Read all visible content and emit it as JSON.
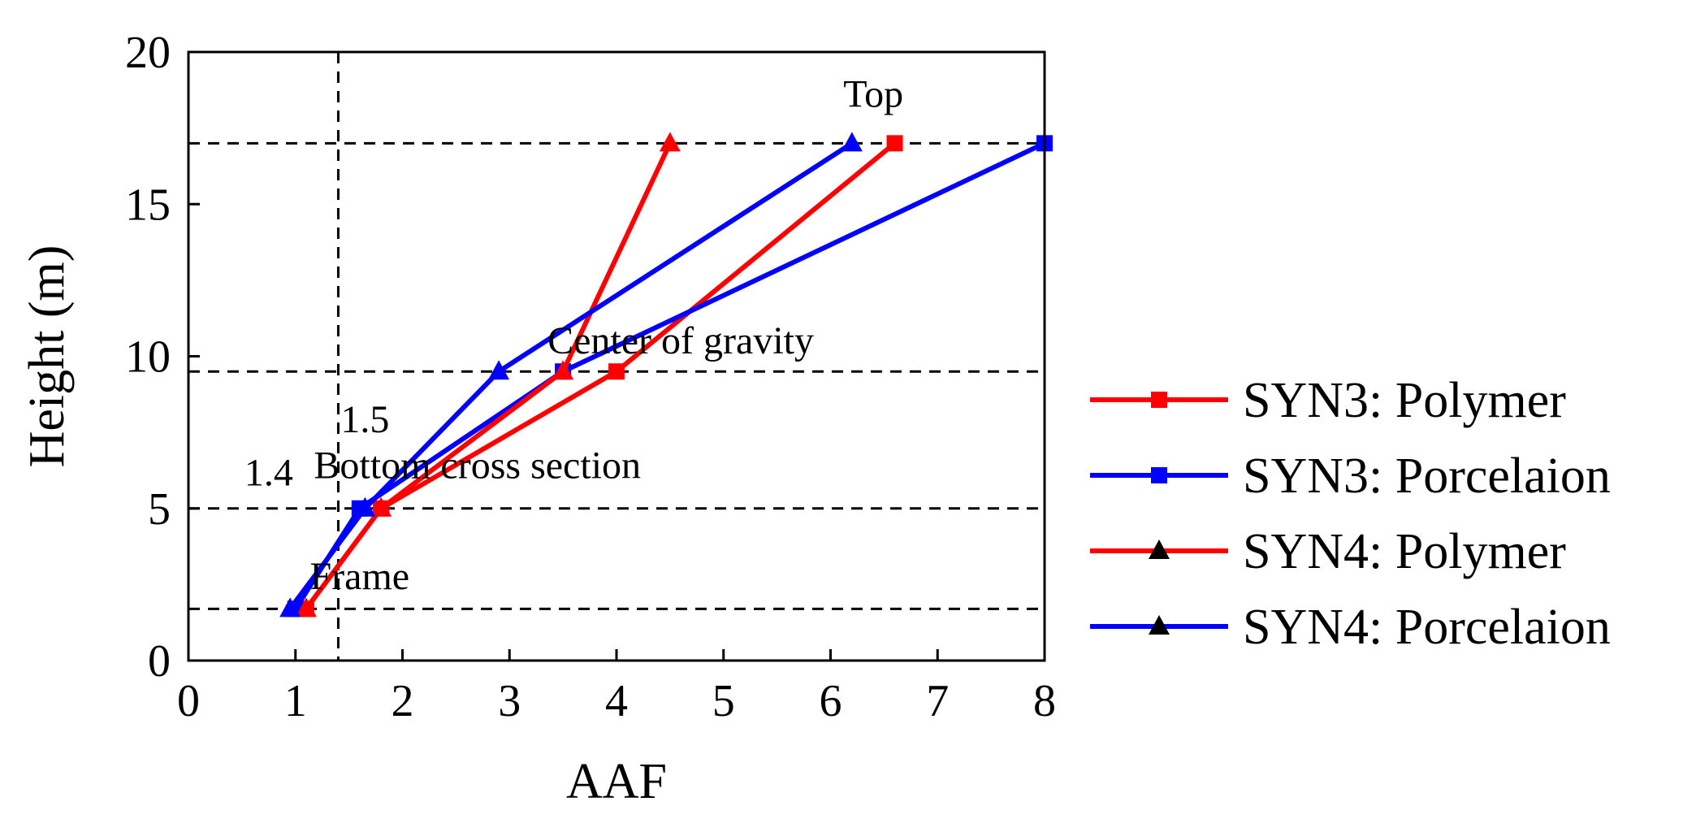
{
  "chart_data": {
    "type": "line",
    "xlabel": "AAF",
    "ylabel": "Height (m)",
    "xlim": [
      0,
      8
    ],
    "ylim": [
      0,
      20
    ],
    "xticks": [
      0,
      1,
      2,
      3,
      4,
      5,
      6,
      7,
      8
    ],
    "yticks": [
      0,
      5,
      10,
      15,
      20
    ],
    "grid": false,
    "legend_position": "right",
    "reference_lines": {
      "horizontal": [
        1.7,
        5,
        9.5,
        17
      ],
      "vertical": [
        1.4
      ]
    },
    "annotations": [
      {
        "text": "Top",
        "x": 6.4,
        "y": 18.2
      },
      {
        "text": "Center of gravity",
        "x": 4.6,
        "y": 10.1
      },
      {
        "text": "Bottom cross section",
        "x": 2.7,
        "y": 6
      },
      {
        "text": "Frame",
        "x": 1.6,
        "y": 2.35
      },
      {
        "text": "1.5",
        "x": 1.65,
        "y": 7.5
      },
      {
        "text": "1.4",
        "x": 0.75,
        "y": 5.75
      }
    ],
    "series": [
      {
        "name": "SYN3: Polymer",
        "marker": "square",
        "color": "#ff0000",
        "x": [
          1.1,
          1.8,
          4.0,
          6.6
        ],
        "y": [
          1.7,
          5,
          9.5,
          17
        ]
      },
      {
        "name": "SYN3: Porcelaion",
        "marker": "square",
        "color": "#0000ff",
        "x": [
          1.0,
          1.6,
          3.5,
          8.0
        ],
        "y": [
          1.7,
          5,
          9.5,
          17
        ]
      },
      {
        "name": "SYN4: Polymer",
        "marker": "triangle",
        "color": "#ff0000",
        "x": [
          1.1,
          1.8,
          3.5,
          4.5
        ],
        "y": [
          1.7,
          5,
          9.5,
          17
        ]
      },
      {
        "name": "SYN4: Porcelaion",
        "marker": "triangle",
        "color": "#0000ff",
        "x": [
          0.95,
          1.65,
          2.9,
          6.2
        ],
        "y": [
          1.7,
          5,
          9.5,
          17
        ]
      }
    ]
  }
}
